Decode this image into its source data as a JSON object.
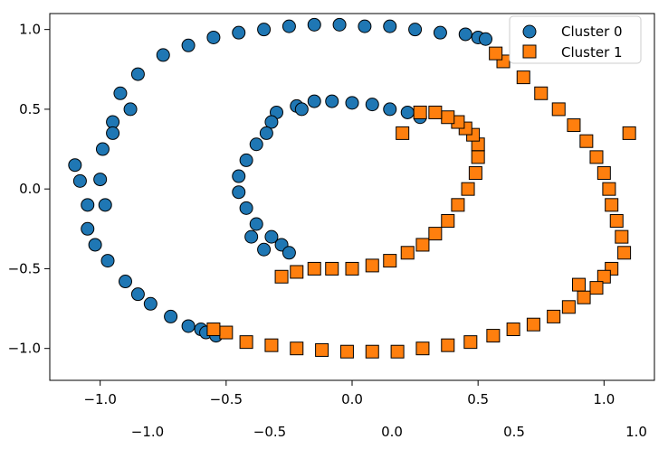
{
  "chart_data": {
    "type": "scatter",
    "xlim": [
      -1.2,
      1.2
    ],
    "ylim": [
      -1.2,
      1.1
    ],
    "xticks": [
      -1.0,
      -0.5,
      0.0,
      0.5,
      1.0
    ],
    "yticks": [
      -1.0,
      -0.5,
      0.0,
      0.5,
      1.0
    ],
    "xtick_labels": [
      "−1.0",
      "−0.5",
      "0.0",
      "0.5",
      "1.0"
    ],
    "ytick_labels": [
      "−1.0",
      "−0.5",
      "0.0",
      "0.5",
      "1.0"
    ],
    "extra_xtick_labels": [
      "−1.0",
      "−0.5",
      "0.0",
      "0.5",
      "1.0"
    ],
    "legend_position": "upper-right",
    "grid": false,
    "series": [
      {
        "name": "Cluster 0",
        "marker": "circle",
        "color": "#1f77b4",
        "edgecolor": "#000000",
        "x": [
          -1.0,
          -0.99,
          -0.95,
          -0.98,
          -0.92,
          -0.85,
          -0.75,
          -0.65,
          -0.55,
          -0.45,
          -0.35,
          -0.25,
          -0.15,
          -0.05,
          0.05,
          0.15,
          0.25,
          0.35,
          0.45,
          0.5,
          0.53,
          -1.05,
          -1.08,
          -1.1,
          -1.05,
          -0.97,
          -0.9,
          -0.85,
          -0.8,
          -0.72,
          -0.65,
          -0.6,
          -0.58,
          -0.54,
          -1.02,
          -0.95,
          -0.88,
          -0.3,
          -0.32,
          -0.34,
          -0.38,
          -0.42,
          -0.45,
          -0.45,
          -0.42,
          -0.38,
          -0.32,
          -0.28,
          -0.22,
          -0.15,
          -0.08,
          0.0,
          0.08,
          0.15,
          0.22,
          0.27,
          -0.25,
          -0.2,
          -0.35,
          -0.4
        ],
        "y": [
          0.06,
          0.25,
          0.42,
          -0.1,
          0.6,
          0.72,
          0.84,
          0.9,
          0.95,
          0.98,
          1.0,
          1.02,
          1.03,
          1.03,
          1.02,
          1.02,
          1.0,
          0.98,
          0.97,
          0.95,
          0.94,
          -0.1,
          0.05,
          0.15,
          -0.25,
          -0.45,
          -0.58,
          -0.66,
          -0.72,
          -0.8,
          -0.86,
          -0.88,
          -0.9,
          -0.92,
          -0.35,
          0.35,
          0.5,
          0.48,
          0.42,
          0.35,
          0.28,
          0.18,
          0.08,
          -0.02,
          -0.12,
          -0.22,
          -0.3,
          -0.35,
          0.52,
          0.55,
          0.55,
          0.54,
          0.53,
          0.5,
          0.48,
          0.45,
          -0.4,
          0.5,
          -0.38,
          -0.3
        ]
      },
      {
        "name": "Cluster 1",
        "marker": "square",
        "color": "#ff7f0e",
        "edgecolor": "#000000",
        "x": [
          0.6,
          0.68,
          0.75,
          0.82,
          0.88,
          0.93,
          0.97,
          1.0,
          1.02,
          1.03,
          1.05,
          1.07,
          1.08,
          1.1,
          1.03,
          1.0,
          0.97,
          0.92,
          0.86,
          0.8,
          0.72,
          0.64,
          0.56,
          0.47,
          0.38,
          0.28,
          0.18,
          0.08,
          -0.02,
          -0.12,
          -0.22,
          -0.32,
          -0.42,
          -0.5,
          -0.55,
          -0.28,
          -0.22,
          -0.15,
          -0.08,
          0.0,
          0.08,
          0.15,
          0.22,
          0.28,
          0.33,
          0.38,
          0.42,
          0.46,
          0.49,
          0.5,
          0.5,
          0.48,
          0.45,
          0.42,
          0.38,
          0.33,
          0.27,
          0.2,
          0.57,
          0.9
        ],
        "y": [
          0.8,
          0.7,
          0.6,
          0.5,
          0.4,
          0.3,
          0.2,
          0.1,
          0.0,
          -0.1,
          -0.2,
          -0.3,
          -0.4,
          0.35,
          -0.5,
          -0.55,
          -0.62,
          -0.68,
          -0.74,
          -0.8,
          -0.85,
          -0.88,
          -0.92,
          -0.96,
          -0.98,
          -1.0,
          -1.02,
          -1.02,
          -1.02,
          -1.01,
          -1.0,
          -0.98,
          -0.96,
          -0.9,
          -0.88,
          -0.55,
          -0.52,
          -0.5,
          -0.5,
          -0.5,
          -0.48,
          -0.45,
          -0.4,
          -0.35,
          -0.28,
          -0.2,
          -0.1,
          0.0,
          0.1,
          0.2,
          0.28,
          0.34,
          0.38,
          0.42,
          0.45,
          0.48,
          0.48,
          0.35,
          0.85,
          -0.6
        ]
      }
    ]
  }
}
